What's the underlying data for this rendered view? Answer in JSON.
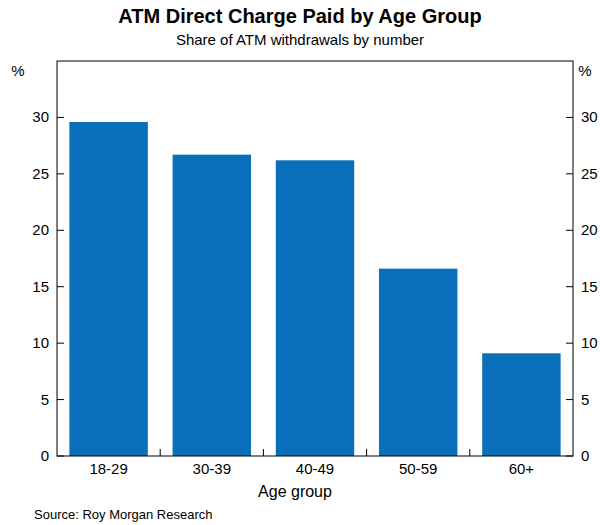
{
  "chart_data": {
    "type": "bar",
    "title": "ATM Direct Charge Paid by Age Group",
    "subtitle": "Share of ATM withdrawals by number",
    "y_label": "%",
    "x_label": "Age group",
    "source": "Source: Roy Morgan Research",
    "categories": [
      "18-29",
      "30-39",
      "40-49",
      "50-59",
      "60+"
    ],
    "values": [
      29.6,
      26.7,
      26.2,
      16.6,
      9.1
    ],
    "color": "#0a6fba",
    "ylim": [
      0,
      35
    ],
    "yticks": [
      0,
      5,
      10,
      15,
      20,
      25,
      30
    ],
    "grid": false
  }
}
